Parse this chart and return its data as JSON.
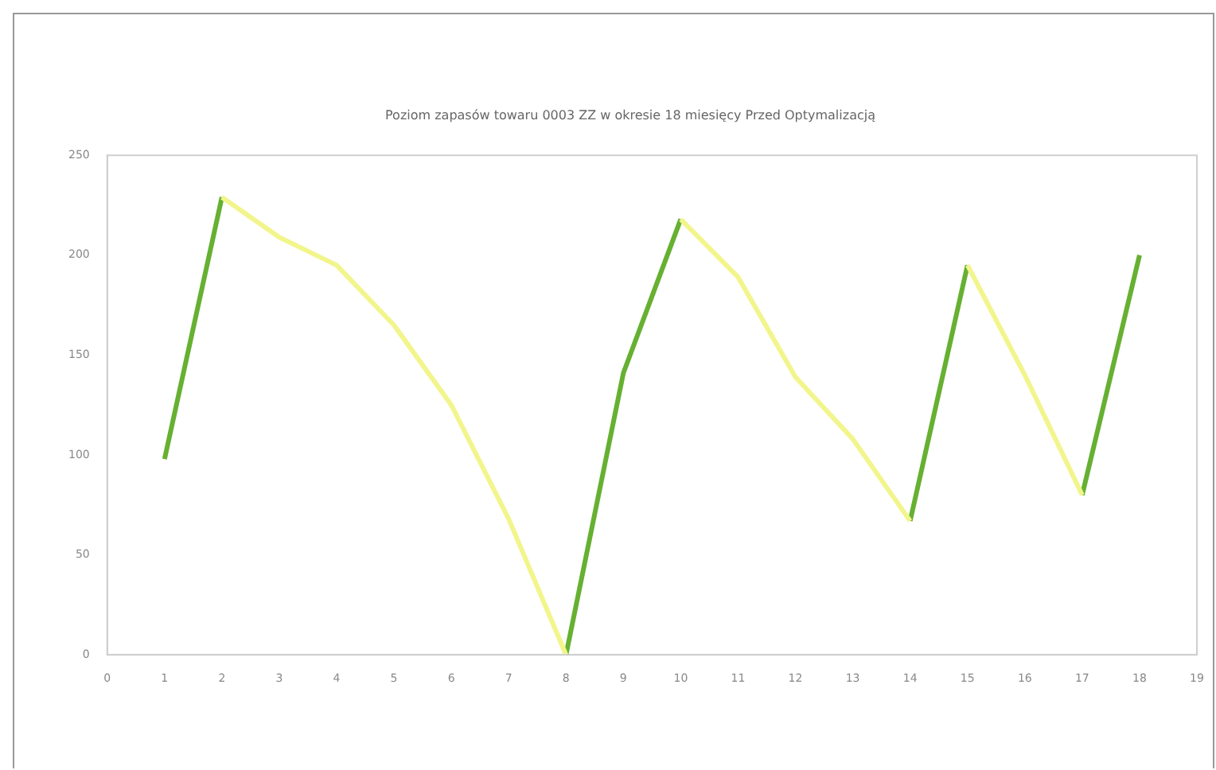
{
  "chart_data": {
    "type": "line",
    "title": "Poziom zapasów towaru 0003 ZZ w okresie 18 miesięcy Przed Optymalizacją",
    "xlim": [
      0,
      19
    ],
    "xticks": [
      0,
      1,
      2,
      3,
      4,
      5,
      6,
      7,
      8,
      9,
      10,
      11,
      12,
      13,
      14,
      15,
      16,
      17,
      18,
      19
    ],
    "ylim": [
      0,
      250
    ],
    "yticks": [
      0,
      50,
      100,
      150,
      200,
      250
    ],
    "grid": false,
    "legend": false,
    "series": [
      {
        "color": "#f2f58c",
        "x": [
          2,
          3,
          4,
          5,
          6,
          7,
          8,
          9,
          10,
          11,
          12,
          13,
          14
        ],
        "values": [
          229,
          209,
          195,
          165,
          125,
          68,
          0,
          null,
          218,
          189,
          139,
          108,
          67
        ]
      },
      {
        "color": "#f2f58c",
        "x": [
          15,
          16,
          17
        ],
        "values": [
          195,
          140,
          80
        ]
      },
      {
        "color": "#66b032",
        "x": [
          1,
          2,
          3,
          8,
          9,
          10,
          11,
          14,
          15,
          16,
          17,
          18
        ],
        "values": [
          98,
          229,
          null,
          0,
          141,
          218,
          null,
          67,
          195,
          null,
          80,
          200
        ]
      }
    ]
  }
}
